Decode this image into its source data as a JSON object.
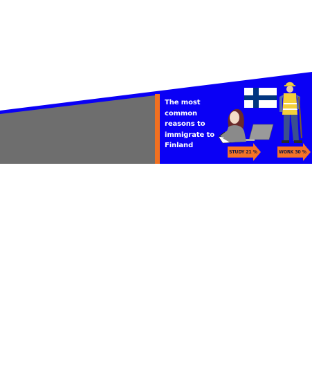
{
  "headline": {
    "lines": [
      "The most",
      "common",
      "reasons to",
      "immigrate to",
      "Finland"
    ]
  },
  "reasons": [
    {
      "label": "STUDY 21 %",
      "percent": 21
    },
    {
      "label": "WORK 30 %",
      "percent": 30
    }
  ],
  "colors": {
    "background": "#ffffff",
    "banner_blue": "#0a00f5",
    "panel_gray": "#6e6e6e",
    "divider_orange": "#f07020",
    "arrow_orange": "#f57327",
    "flag_blue": "#003580",
    "text": "#ffffff"
  },
  "icons": {
    "flag": "finland-flag-icon",
    "student": "student-with-laptop-illustration",
    "worker": "construction-worker-illustration"
  }
}
